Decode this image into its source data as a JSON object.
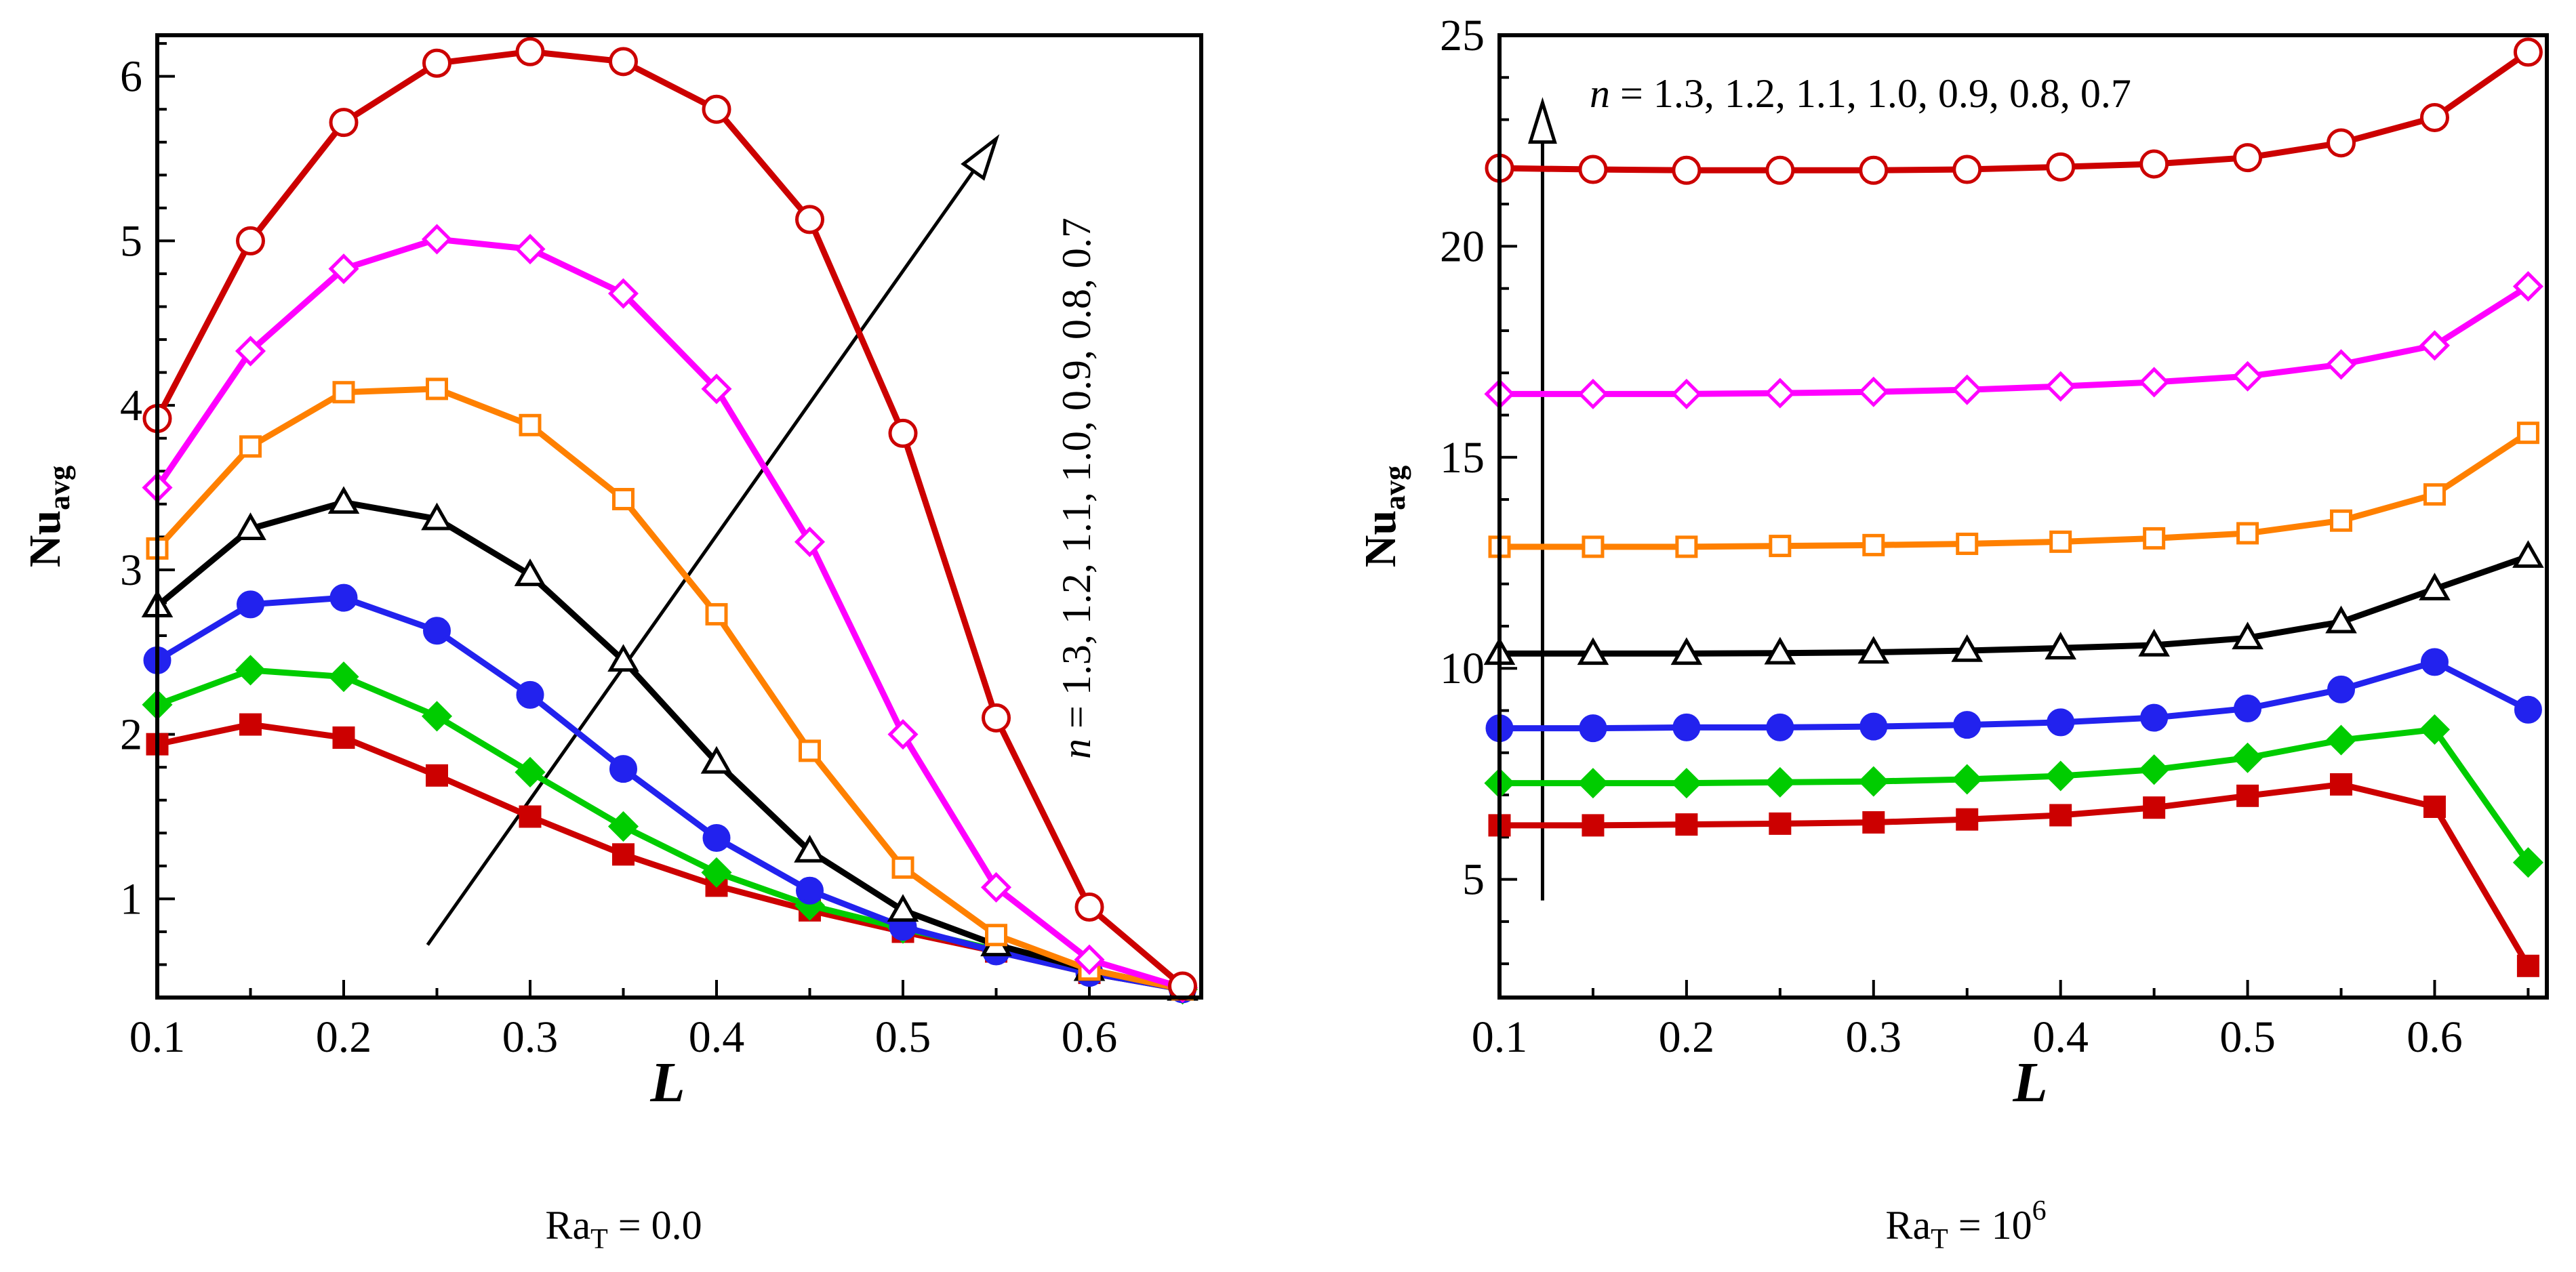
{
  "chart_data": [
    {
      "type": "line",
      "ylabel": "Nu",
      "ylabel_sub": "avg",
      "xlabel": "L",
      "caption": {
        "main": "Ra",
        "sub": "T",
        "rest": " = 0.0",
        "sup": ""
      },
      "annotation": "n = 1.3, 1.2, 1.1, 1.0, 0.9, 0.8, 0.7",
      "annotation_var": "n",
      "annotation_rest": " = 1.3, 1.2, 1.1, 1.0, 0.9, 0.8, 0.7",
      "xlim": [
        0.1,
        0.66
      ],
      "ylim": [
        0.4,
        6.25
      ],
      "xticks": [
        0.1,
        0.2,
        0.3,
        0.4,
        0.5,
        0.6
      ],
      "yticks": [
        1,
        2,
        3,
        4,
        5,
        6
      ],
      "xtick_labels": [
        "0.1",
        "0.2",
        "0.3",
        "0.4",
        "0.5",
        "0.6"
      ],
      "ytick_labels": [
        "1",
        "2",
        "3",
        "4",
        "5",
        "6"
      ],
      "x": [
        0.1,
        0.15,
        0.2,
        0.25,
        0.3,
        0.35,
        0.4,
        0.45,
        0.5,
        0.55,
        0.6,
        0.65
      ],
      "series": [
        {
          "color": "#cc0000",
          "marker": "circle-open",
          "values": [
            3.92,
            5.0,
            5.72,
            6.08,
            6.15,
            6.09,
            5.8,
            5.13,
            3.83,
            2.1,
            0.95,
            0.47
          ]
        },
        {
          "color": "#ff00ff",
          "marker": "diamond-open",
          "values": [
            3.5,
            4.33,
            4.83,
            5.01,
            4.95,
            4.68,
            4.1,
            3.17,
            2.0,
            1.07,
            0.63,
            0.46
          ]
        },
        {
          "color": "#ff8000",
          "marker": "square-open",
          "values": [
            3.13,
            3.75,
            4.08,
            4.1,
            3.88,
            3.43,
            2.73,
            1.9,
            1.19,
            0.78,
            0.57,
            0.45
          ]
        },
        {
          "color": "#000000",
          "marker": "triangle-open",
          "values": [
            2.78,
            3.25,
            3.41,
            3.31,
            2.97,
            2.45,
            1.83,
            1.29,
            0.93,
            0.72,
            0.57,
            0.45
          ]
        },
        {
          "color": "#2222ee",
          "marker": "circle-filled",
          "values": [
            2.45,
            2.79,
            2.83,
            2.63,
            2.24,
            1.79,
            1.37,
            1.05,
            0.83,
            0.68,
            0.55,
            0.45
          ]
        },
        {
          "color": "#00cc00",
          "marker": "diamond-filled",
          "values": [
            2.18,
            2.39,
            2.35,
            2.11,
            1.77,
            1.44,
            1.16,
            0.96,
            0.82,
            0.69,
            0.56,
            0.45
          ]
        },
        {
          "color": "#cc0000",
          "marker": "square-filled",
          "values": [
            1.94,
            2.06,
            1.98,
            1.75,
            1.5,
            1.27,
            1.08,
            0.93,
            0.8,
            0.68,
            0.55,
            0.45
          ]
        }
      ],
      "arrow": {
        "from": [
          0.245,
          0.72
        ],
        "to": [
          0.55,
          5.62
        ]
      }
    },
    {
      "type": "line",
      "ylabel": "Nu",
      "ylabel_sub": "avg",
      "xlabel": "L",
      "caption": {
        "main": "Ra",
        "sub": "T",
        "rest": " = 10",
        "sup": "6"
      },
      "annotation": "n = 1.3, 1.2, 1.1, 1.0, 0.9, 0.8, 0.7",
      "annotation_var": "n",
      "annotation_rest": " = 1.3, 1.2, 1.1, 1.0, 0.9, 0.8, 0.7",
      "xlim": [
        0.1,
        0.66
      ],
      "ylim": [
        2.2,
        25
      ],
      "xticks": [
        0.1,
        0.2,
        0.3,
        0.4,
        0.5,
        0.6
      ],
      "yticks": [
        5,
        10,
        15,
        20,
        25
      ],
      "xtick_labels": [
        "0.1",
        "0.2",
        "0.3",
        "0.4",
        "0.5",
        "0.6"
      ],
      "ytick_labels": [
        "5",
        "10",
        "15",
        "20",
        "25"
      ],
      "x": [
        0.1,
        0.15,
        0.2,
        0.25,
        0.3,
        0.35,
        0.4,
        0.45,
        0.5,
        0.55,
        0.6,
        0.65
      ],
      "series": [
        {
          "color": "#cc0000",
          "marker": "circle-open",
          "values": [
            21.85,
            21.82,
            21.8,
            21.8,
            21.8,
            21.82,
            21.88,
            21.95,
            22.1,
            22.45,
            23.05,
            24.6
          ]
        },
        {
          "color": "#ff00ff",
          "marker": "diamond-open",
          "values": [
            16.5,
            16.5,
            16.5,
            16.52,
            16.55,
            16.6,
            16.68,
            16.78,
            16.92,
            17.2,
            17.65,
            19.05
          ]
        },
        {
          "color": "#ff8000",
          "marker": "square-open",
          "values": [
            12.88,
            12.88,
            12.88,
            12.9,
            12.92,
            12.95,
            13.0,
            13.08,
            13.2,
            13.5,
            14.12,
            15.58
          ]
        },
        {
          "color": "#000000",
          "marker": "triangle-open",
          "values": [
            10.35,
            10.35,
            10.35,
            10.36,
            10.38,
            10.42,
            10.48,
            10.55,
            10.72,
            11.1,
            11.88,
            12.65
          ]
        },
        {
          "color": "#2222ee",
          "marker": "circle-filled",
          "values": [
            8.58,
            8.58,
            8.6,
            8.6,
            8.62,
            8.66,
            8.72,
            8.83,
            9.05,
            9.5,
            10.15,
            9.02
          ]
        },
        {
          "color": "#00cc00",
          "marker": "diamond-filled",
          "values": [
            7.28,
            7.28,
            7.28,
            7.3,
            7.32,
            7.37,
            7.45,
            7.6,
            7.88,
            8.3,
            8.55,
            5.4
          ]
        },
        {
          "color": "#cc0000",
          "marker": "square-filled",
          "values": [
            6.28,
            6.28,
            6.3,
            6.32,
            6.35,
            6.42,
            6.52,
            6.7,
            6.98,
            7.25,
            6.72,
            2.95
          ]
        }
      ],
      "arrow": {
        "from": [
          0.123,
          4.5
        ],
        "to": [
          0.123,
          23.4
        ]
      }
    }
  ]
}
